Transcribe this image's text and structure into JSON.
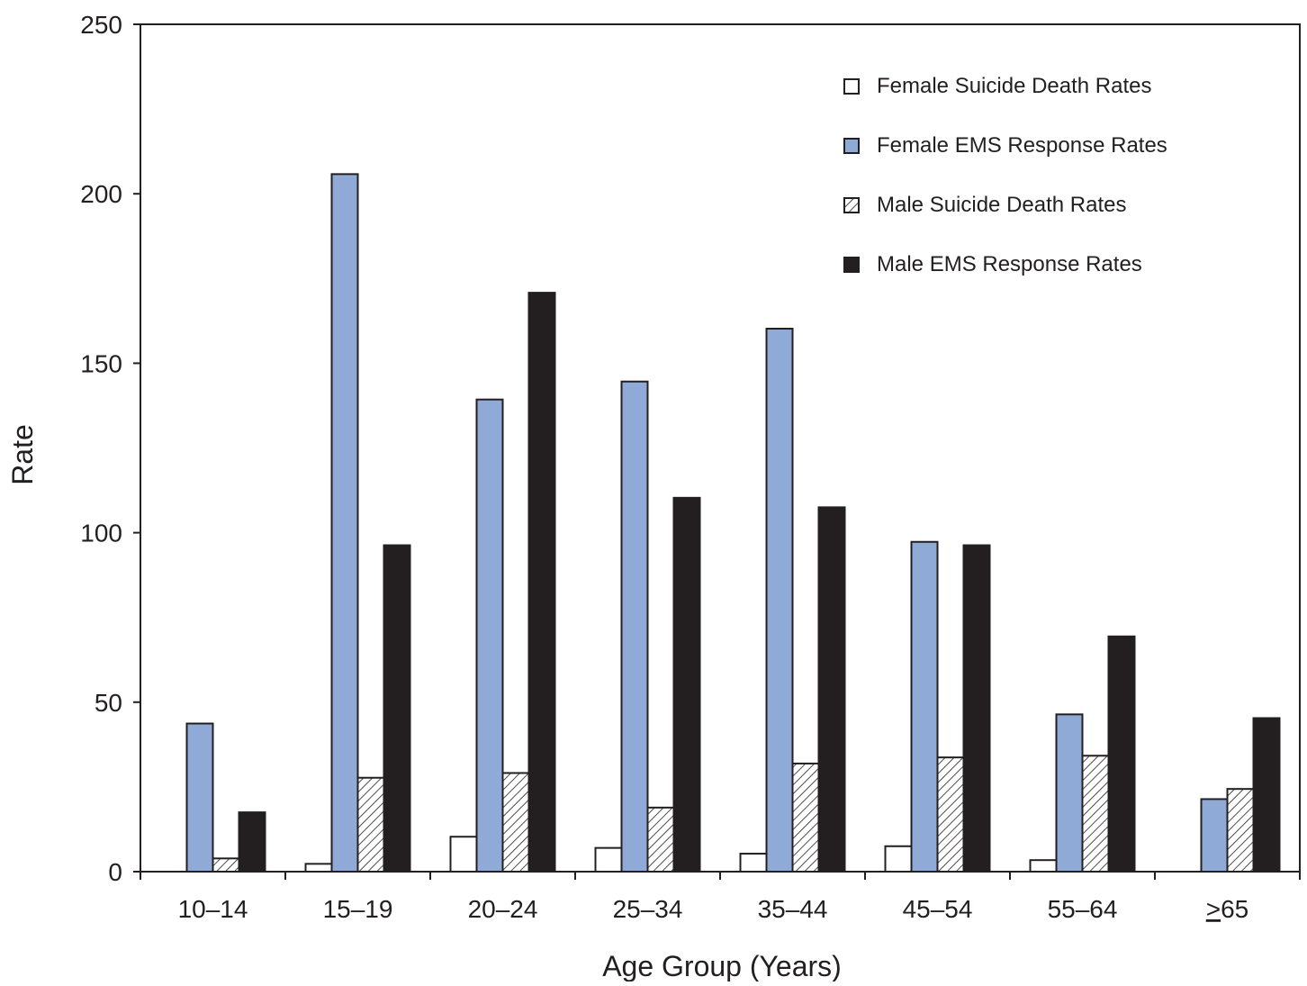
{
  "chart_data": {
    "type": "bar",
    "title": "",
    "xlabel": "Age Group (Years)",
    "ylabel": "Rate",
    "ylim": [
      0,
      250
    ],
    "yticks": [
      "0",
      "50",
      "100",
      "150",
      "200",
      "250"
    ],
    "categories": [
      "10–14",
      "15–19",
      "20–24",
      "25–34",
      "35–44",
      "45–54",
      "55–64",
      "≥65"
    ],
    "legend_position": "top-right",
    "grid": false,
    "series": [
      {
        "name": "Female Suicide Death Rates",
        "key": "female_suicide",
        "fill": "white",
        "values": [
          0,
          2.3,
          10.3,
          7,
          5.3,
          7.5,
          3.4,
          0
        ]
      },
      {
        "name": "Female EMS Response Rates",
        "key": "female_ems",
        "fill": "blue",
        "values": [
          43.7,
          205.8,
          139.3,
          144.6,
          160.2,
          97.3,
          46.4,
          21.4
        ]
      },
      {
        "name": "Male Suicide Death Rates",
        "key": "male_suicide",
        "fill": "hatch",
        "values": [
          3.9,
          27.7,
          29.1,
          18.9,
          31.9,
          33.7,
          34.2,
          24.4
        ]
      },
      {
        "name": "Male EMS Response Rates",
        "key": "male_ems",
        "fill": "black",
        "values": [
          17.5,
          96.3,
          170.8,
          110.3,
          107.5,
          96.3,
          69.4,
          45.3
        ]
      }
    ],
    "colors": {
      "blue": "#8faad6",
      "black": "#231f20",
      "white": "#ffffff",
      "stroke": "#231f20"
    }
  }
}
